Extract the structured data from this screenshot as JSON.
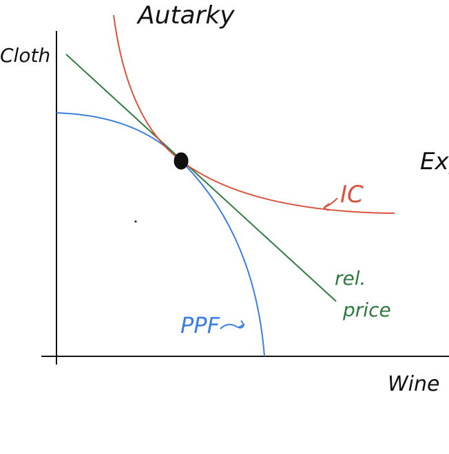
{
  "diagram": {
    "title": "Autarky",
    "corner_text": "Exp",
    "y_axis_label": "Cloth",
    "x_axis_label": "Wine",
    "curves": {
      "ppf": {
        "label": "PPF",
        "color": "#3b7de0"
      },
      "ic": {
        "label": "IC",
        "color": "#d9533b"
      },
      "price": {
        "label_line1": "rel.",
        "label_line2": "price",
        "color": "#2e7a3e"
      }
    },
    "ink_color": "#111111"
  }
}
